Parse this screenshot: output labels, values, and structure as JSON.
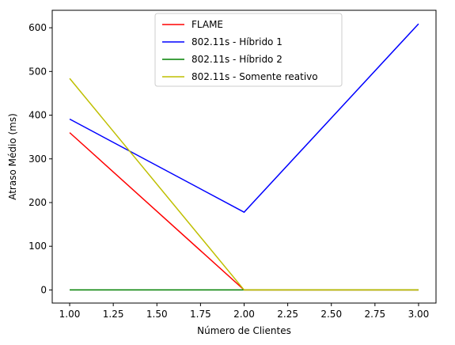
{
  "chart_data": {
    "type": "line",
    "title": "",
    "xlabel": "Número de Clientes",
    "ylabel": "Atraso Médio (ms)",
    "xlim": [
      0.9,
      3.1
    ],
    "ylim": [
      -30,
      640
    ],
    "x": [
      1.0,
      2.0,
      3.0
    ],
    "x_ticks": [
      1.0,
      1.25,
      1.5,
      1.75,
      2.0,
      2.25,
      2.5,
      2.75,
      3.0
    ],
    "x_tick_labels": [
      "1.00",
      "1.25",
      "1.50",
      "1.75",
      "2.00",
      "2.25",
      "2.50",
      "2.75",
      "3.00"
    ],
    "y_ticks": [
      0,
      100,
      200,
      300,
      400,
      500,
      600
    ],
    "y_tick_labels": [
      "0",
      "100",
      "200",
      "300",
      "400",
      "500",
      "600"
    ],
    "grid": false,
    "legend_position": "top-center",
    "series": [
      {
        "name": "FLAME",
        "color": "#ff0000",
        "values": [
          360,
          0,
          0
        ]
      },
      {
        "name": "802.11s - Híbrido 1",
        "color": "#0000ff",
        "values": [
          391,
          178,
          609
        ]
      },
      {
        "name": "802.11s - Híbrido 2",
        "color": "#008000",
        "values": [
          0,
          0,
          0
        ]
      },
      {
        "name": "802.11s - Somente reativo",
        "color": "#bfbf00",
        "values": [
          484,
          0,
          0
        ]
      }
    ]
  }
}
